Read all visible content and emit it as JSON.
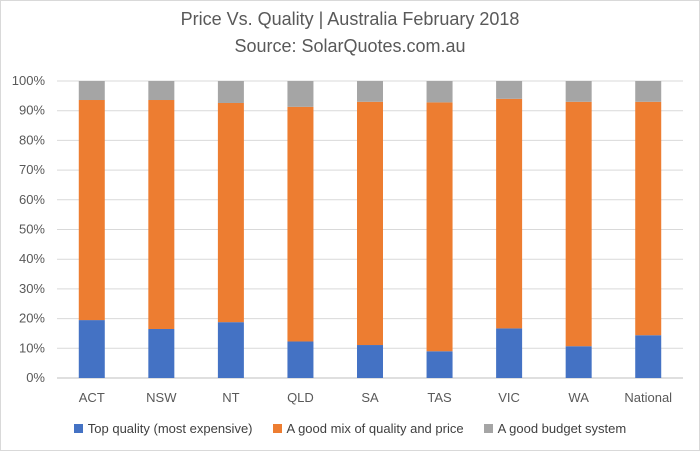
{
  "chart_data": {
    "type": "bar",
    "stacked": true,
    "title": "Price Vs. Quality | Australia February 2018",
    "subtitle": "Source: SolarQuotes.com.au",
    "categories": [
      "ACT",
      "NSW",
      "NT",
      "QLD",
      "SA",
      "TAS",
      "VIC",
      "WA",
      "National"
    ],
    "ylim": [
      0,
      100
    ],
    "yticks": [
      "0%",
      "10%",
      "20%",
      "30%",
      "40%",
      "50%",
      "60%",
      "70%",
      "80%",
      "90%",
      "100%"
    ],
    "legend_position": "bottom",
    "grid": true,
    "series": [
      {
        "name": "Top quality (most expensive)",
        "color": "#4472c4",
        "values": [
          19.5,
          16.5,
          18.8,
          12.3,
          11.1,
          9.0,
          16.7,
          10.7,
          14.4
        ]
      },
      {
        "name": "A good mix of quality and price",
        "color": "#ed7d31",
        "values": [
          74.1,
          77.1,
          73.8,
          79.0,
          81.9,
          83.8,
          77.3,
          82.3,
          78.6
        ]
      },
      {
        "name": "A good budget system",
        "color": "#a5a5a5",
        "values": [
          6.4,
          6.4,
          7.4,
          8.7,
          7.0,
          7.2,
          6.0,
          7.0,
          7.0
        ]
      }
    ]
  }
}
